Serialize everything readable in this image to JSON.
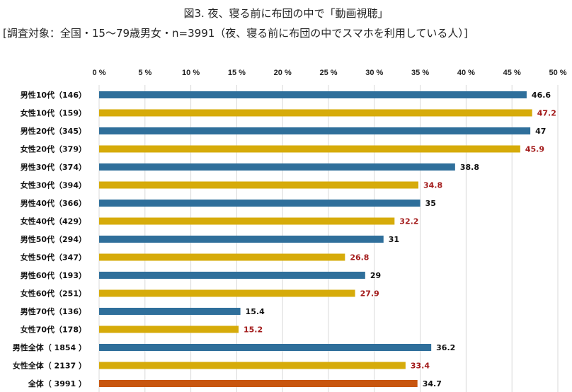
{
  "chart_data": {
    "type": "bar",
    "orientation": "horizontal",
    "title": "図3. 夜、寝る前に布団の中で「動画視聴」",
    "subtitle": "[調査対象：全国・15～79歳男女・n=3991（夜、寝る前に布団の中でスマホを利用している人）]",
    "xlim": [
      0,
      50
    ],
    "xticks": [
      "0 %",
      "5 %",
      "10 %",
      "15 %",
      "20 %",
      "25 %",
      "30 %",
      "35 %",
      "40 %",
      "45 %",
      "50 %"
    ],
    "grid": true,
    "categories": [
      "男性10代（146）",
      "女性10代（159）",
      "男性20代（345）",
      "女性20代（379）",
      "男性30代（374）",
      "女性30代（394）",
      "男性40代（366）",
      "女性40代（429）",
      "男性50代（294）",
      "女性50代（347）",
      "男性60代（193）",
      "女性60代（251）",
      "男性70代（136）",
      "女性70代（178）",
      "男性全体（ 1854 ）",
      "女性全体（ 2137 ）",
      "全体（ 3991 ）"
    ],
    "values": [
      46.6,
      47.2,
      47,
      45.9,
      38.8,
      34.8,
      35,
      32.2,
      31,
      26.8,
      29,
      27.9,
      15.4,
      15.2,
      36.2,
      33.4,
      34.7
    ],
    "groups": [
      "male",
      "female",
      "male",
      "female",
      "male",
      "female",
      "male",
      "female",
      "male",
      "female",
      "male",
      "female",
      "male",
      "female",
      "male",
      "female",
      "total"
    ],
    "colors": {
      "male": "#2f6f9b",
      "female": "#d6ab0a",
      "total": "#c8560f",
      "female_label": "#a31b1b",
      "label": "#111111"
    }
  }
}
